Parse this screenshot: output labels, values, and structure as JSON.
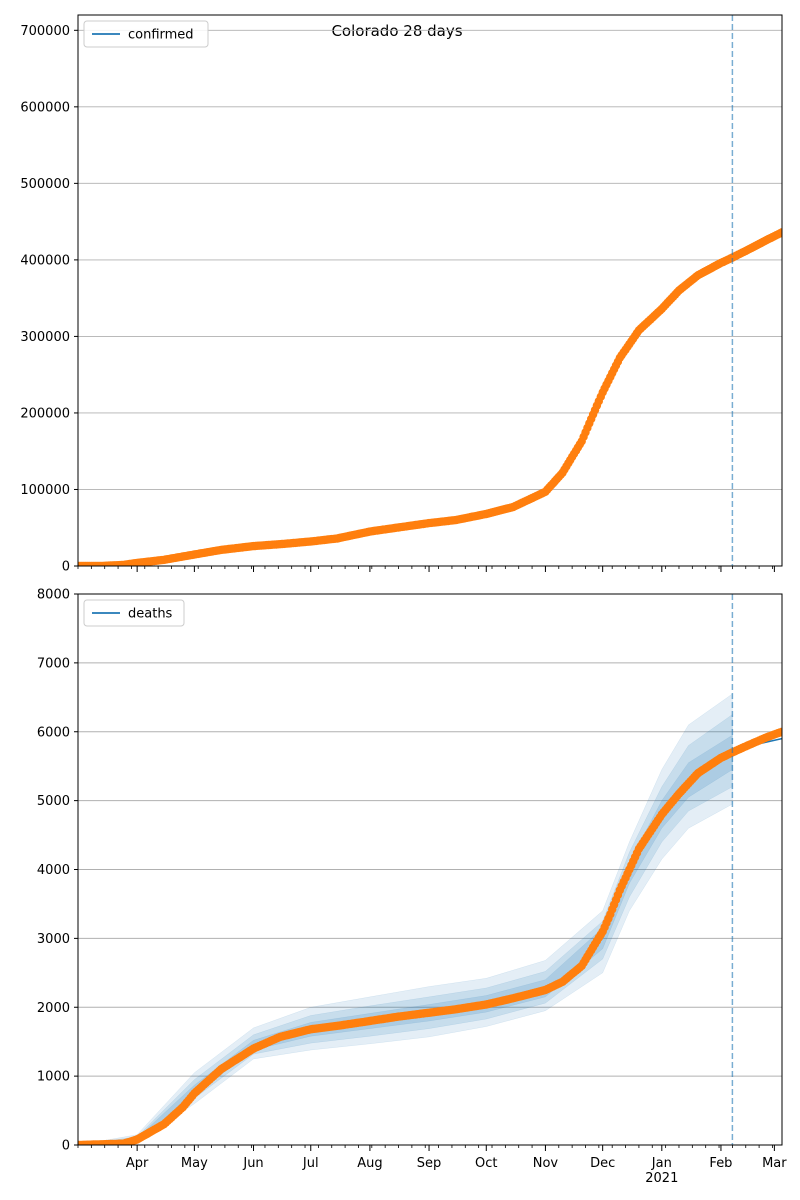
{
  "chart_data": {
    "title": "Colorado 28 days",
    "type": "line",
    "x_start": "2020-03-01",
    "x_end": "2021-03-05",
    "forecast_line_date": "2021-02-07",
    "x_tick_labels": [
      "Apr",
      "May",
      "Jun",
      "Jul",
      "Aug",
      "Sep",
      "Oct",
      "Nov",
      "Dec",
      "Jan",
      "Feb",
      "Mar"
    ],
    "x_tick_dates": [
      "2020-04-01",
      "2020-05-01",
      "2020-06-01",
      "2020-07-01",
      "2020-08-01",
      "2020-09-01",
      "2020-10-01",
      "2020-11-01",
      "2020-12-01",
      "2021-01-01",
      "2021-02-01",
      "2021-03-01"
    ],
    "year_label": "2021",
    "grid": true,
    "legend_position": "upper-left",
    "colors": {
      "model": "#1f77b4",
      "observed": "#ff7f0e",
      "band": "#1f77b4",
      "grid": "#b0b0b0"
    },
    "panels": [
      {
        "id": "confirmed",
        "legend": "confirmed",
        "ylim": [
          0,
          720000
        ],
        "yticks": [
          0,
          100000,
          200000,
          300000,
          400000,
          500000,
          600000,
          700000
        ],
        "ytick_labels": [
          "0",
          "100000",
          "200000",
          "300000",
          "400000",
          "500000",
          "600000",
          "700000"
        ],
        "observed": [
          [
            "2020-03-01",
            0
          ],
          [
            "2020-03-15",
            200
          ],
          [
            "2020-03-25",
            1500
          ],
          [
            "2020-04-01",
            4000
          ],
          [
            "2020-04-15",
            8000
          ],
          [
            "2020-05-01",
            15000
          ],
          [
            "2020-05-15",
            21000
          ],
          [
            "2020-06-01",
            26000
          ],
          [
            "2020-06-15",
            28500
          ],
          [
            "2020-07-01",
            32000
          ],
          [
            "2020-07-15",
            36000
          ],
          [
            "2020-08-01",
            45000
          ],
          [
            "2020-08-15",
            50000
          ],
          [
            "2020-09-01",
            56000
          ],
          [
            "2020-09-15",
            60000
          ],
          [
            "2020-10-01",
            68000
          ],
          [
            "2020-10-15",
            77000
          ],
          [
            "2020-11-01",
            97000
          ],
          [
            "2020-11-10",
            122000
          ],
          [
            "2020-11-20",
            163000
          ],
          [
            "2020-12-01",
            227000
          ],
          [
            "2020-12-10",
            272000
          ],
          [
            "2020-12-20",
            308000
          ],
          [
            "2021-01-01",
            336000
          ],
          [
            "2021-01-10",
            360000
          ],
          [
            "2021-01-20",
            380000
          ],
          [
            "2021-02-01",
            396000
          ],
          [
            "2021-02-07",
            403000
          ],
          [
            "2021-02-15",
            413000
          ],
          [
            "2021-02-25",
            426000
          ],
          [
            "2021-03-05",
            436000
          ]
        ],
        "model": [],
        "bands": []
      },
      {
        "id": "deaths",
        "legend": "deaths",
        "ylim": [
          0,
          8000
        ],
        "yticks": [
          0,
          1000,
          2000,
          3000,
          4000,
          5000,
          6000,
          7000,
          8000
        ],
        "ytick_labels": [
          "0",
          "1000",
          "2000",
          "3000",
          "4000",
          "5000",
          "6000",
          "7000",
          "8000"
        ],
        "observed": [
          [
            "2020-03-01",
            0
          ],
          [
            "2020-03-25",
            20
          ],
          [
            "2020-04-01",
            80
          ],
          [
            "2020-04-15",
            300
          ],
          [
            "2020-04-25",
            550
          ],
          [
            "2020-05-01",
            750
          ],
          [
            "2020-05-15",
            1100
          ],
          [
            "2020-06-01",
            1400
          ],
          [
            "2020-06-15",
            1570
          ],
          [
            "2020-07-01",
            1680
          ],
          [
            "2020-07-15",
            1730
          ],
          [
            "2020-08-01",
            1800
          ],
          [
            "2020-08-15",
            1860
          ],
          [
            "2020-09-01",
            1920
          ],
          [
            "2020-09-15",
            1970
          ],
          [
            "2020-10-01",
            2040
          ],
          [
            "2020-10-15",
            2130
          ],
          [
            "2020-11-01",
            2250
          ],
          [
            "2020-11-10",
            2370
          ],
          [
            "2020-11-20",
            2600
          ],
          [
            "2020-12-01",
            3100
          ],
          [
            "2020-12-05",
            3350
          ],
          [
            "2020-12-10",
            3700
          ],
          [
            "2020-12-20",
            4300
          ],
          [
            "2021-01-01",
            4800
          ],
          [
            "2021-01-10",
            5100
          ],
          [
            "2021-01-20",
            5400
          ],
          [
            "2021-02-01",
            5620
          ],
          [
            "2021-02-07",
            5700
          ],
          [
            "2021-02-15",
            5800
          ],
          [
            "2021-02-25",
            5920
          ],
          [
            "2021-03-05",
            6000
          ]
        ],
        "model": [
          [
            "2020-03-01",
            0
          ],
          [
            "2020-04-01",
            80
          ],
          [
            "2020-04-15",
            300
          ],
          [
            "2020-05-01",
            800
          ],
          [
            "2020-05-15",
            1150
          ],
          [
            "2020-06-01",
            1450
          ],
          [
            "2020-07-01",
            1680
          ],
          [
            "2020-08-01",
            1800
          ],
          [
            "2020-09-01",
            1920
          ],
          [
            "2020-10-01",
            2040
          ],
          [
            "2020-11-01",
            2250
          ],
          [
            "2020-11-15",
            2450
          ],
          [
            "2020-12-01",
            3100
          ],
          [
            "2020-12-15",
            4000
          ],
          [
            "2021-01-01",
            4800
          ],
          [
            "2021-01-15",
            5250
          ],
          [
            "2021-02-01",
            5620
          ],
          [
            "2021-02-07",
            5700
          ],
          [
            "2021-02-20",
            5820
          ],
          [
            "2021-03-05",
            5900
          ]
        ],
        "bands": [
          {
            "level": "outer",
            "upper": [
              [
                "2020-03-01",
                0
              ],
              [
                "2020-04-01",
                150
              ],
              [
                "2020-05-01",
                1050
              ],
              [
                "2020-06-01",
                1700
              ],
              [
                "2020-07-01",
                2000
              ],
              [
                "2020-08-01",
                2150
              ],
              [
                "2020-09-01",
                2300
              ],
              [
                "2020-10-01",
                2420
              ],
              [
                "2020-11-01",
                2680
              ],
              [
                "2020-12-01",
                3400
              ],
              [
                "2020-12-15",
                4400
              ],
              [
                "2021-01-01",
                5450
              ],
              [
                "2021-01-15",
                6100
              ],
              [
                "2021-02-07",
                6550
              ]
            ],
            "lower": [
              [
                "2020-03-01",
                0
              ],
              [
                "2020-04-01",
                30
              ],
              [
                "2020-05-01",
                600
              ],
              [
                "2020-06-01",
                1250
              ],
              [
                "2020-07-01",
                1380
              ],
              [
                "2020-08-01",
                1470
              ],
              [
                "2020-09-01",
                1570
              ],
              [
                "2020-10-01",
                1720
              ],
              [
                "2020-11-01",
                1950
              ],
              [
                "2020-12-01",
                2500
              ],
              [
                "2020-12-15",
                3400
              ],
              [
                "2021-01-01",
                4150
              ],
              [
                "2021-01-15",
                4600
              ],
              [
                "2021-02-07",
                4950
              ]
            ]
          },
          {
            "level": "mid",
            "upper": [
              [
                "2020-03-01",
                0
              ],
              [
                "2020-04-01",
                120
              ],
              [
                "2020-05-01",
                950
              ],
              [
                "2020-06-01",
                1600
              ],
              [
                "2020-07-01",
                1880
              ],
              [
                "2020-08-01",
                2020
              ],
              [
                "2020-09-01",
                2150
              ],
              [
                "2020-10-01",
                2280
              ],
              [
                "2020-11-01",
                2520
              ],
              [
                "2020-12-01",
                3250
              ],
              [
                "2020-12-15",
                4250
              ],
              [
                "2021-01-01",
                5200
              ],
              [
                "2021-01-15",
                5800
              ],
              [
                "2021-02-07",
                6250
              ]
            ],
            "lower": [
              [
                "2020-03-01",
                0
              ],
              [
                "2020-04-01",
                45
              ],
              [
                "2020-05-01",
                680
              ],
              [
                "2020-06-01",
                1320
              ],
              [
                "2020-07-01",
                1480
              ],
              [
                "2020-08-01",
                1580
              ],
              [
                "2020-09-01",
                1690
              ],
              [
                "2020-10-01",
                1830
              ],
              [
                "2020-11-01",
                2060
              ],
              [
                "2020-12-01",
                2700
              ],
              [
                "2020-12-15",
                3600
              ],
              [
                "2021-01-01",
                4400
              ],
              [
                "2021-01-15",
                4850
              ],
              [
                "2021-02-07",
                5200
              ]
            ]
          },
          {
            "level": "inner",
            "upper": [
              [
                "2020-03-01",
                0
              ],
              [
                "2020-04-01",
                100
              ],
              [
                "2020-05-01",
                870
              ],
              [
                "2020-06-01",
                1520
              ],
              [
                "2020-07-01",
                1780
              ],
              [
                "2020-08-01",
                1910
              ],
              [
                "2020-09-01",
                2040
              ],
              [
                "2020-10-01",
                2170
              ],
              [
                "2020-11-01",
                2400
              ],
              [
                "2020-12-01",
                3150
              ],
              [
                "2020-12-15",
                4100
              ],
              [
                "2021-01-01",
                5000
              ],
              [
                "2021-01-15",
                5550
              ],
              [
                "2021-02-07",
                5950
              ]
            ],
            "lower": [
              [
                "2020-03-01",
                0
              ],
              [
                "2020-04-01",
                60
              ],
              [
                "2020-05-01",
                730
              ],
              [
                "2020-06-01",
                1380
              ],
              [
                "2020-07-01",
                1580
              ],
              [
                "2020-08-01",
                1690
              ],
              [
                "2020-09-01",
                1800
              ],
              [
                "2020-10-01",
                1930
              ],
              [
                "2020-11-01",
                2150
              ],
              [
                "2020-12-01",
                2850
              ],
              [
                "2020-12-15",
                3800
              ],
              [
                "2021-01-01",
                4600
              ],
              [
                "2021-01-15",
                5050
              ],
              [
                "2021-02-07",
                5450
              ]
            ]
          }
        ]
      }
    ]
  }
}
